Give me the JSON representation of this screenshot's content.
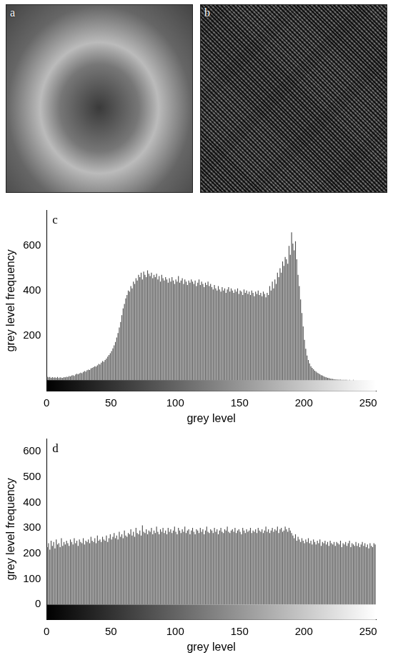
{
  "images": [
    {
      "label": "a"
    },
    {
      "label": "b"
    }
  ],
  "chart_data": [
    {
      "type": "histogram",
      "panel": "c",
      "x_label": "grey level",
      "y_label": "grey level frequency",
      "color": "#4d4d4d",
      "grid": false,
      "xlim": [
        0,
        256
      ],
      "xticks": [
        0,
        50,
        100,
        150,
        200,
        250
      ],
      "ylim": [
        -50,
        760
      ],
      "yticks": [
        200,
        400,
        600
      ],
      "bins": [
        0,
        1,
        2,
        3,
        4,
        5,
        6,
        7,
        8,
        9,
        10,
        11,
        12,
        13,
        14,
        15,
        16,
        17,
        18,
        19,
        20,
        21,
        22,
        23,
        24,
        25,
        26,
        27,
        28,
        29,
        30,
        31,
        32,
        33,
        34,
        35,
        36,
        37,
        38,
        39,
        40,
        41,
        42,
        43,
        44,
        45,
        46,
        47,
        48,
        49,
        50,
        51,
        52,
        53,
        54,
        55,
        56,
        57,
        58,
        59,
        60,
        61,
        62,
        63,
        64,
        65,
        66,
        67,
        68,
        69,
        70,
        71,
        72,
        73,
        74,
        75,
        76,
        77,
        78,
        79,
        80,
        81,
        82,
        83,
        84,
        85,
        86,
        87,
        88,
        89,
        90,
        91,
        92,
        93,
        94,
        95,
        96,
        97,
        98,
        99,
        100,
        101,
        102,
        103,
        104,
        105,
        106,
        107,
        108,
        109,
        110,
        111,
        112,
        113,
        114,
        115,
        116,
        117,
        118,
        119,
        120,
        121,
        122,
        123,
        124,
        125,
        126,
        127,
        128,
        129,
        130,
        131,
        132,
        133,
        134,
        135,
        136,
        137,
        138,
        139,
        140,
        141,
        142,
        143,
        144,
        145,
        146,
        147,
        148,
        149,
        150,
        151,
        152,
        153,
        154,
        155,
        156,
        157,
        158,
        159,
        160,
        161,
        162,
        163,
        164,
        165,
        166,
        167,
        168,
        169,
        170,
        171,
        172,
        173,
        174,
        175,
        176,
        177,
        178,
        179,
        180,
        181,
        182,
        183,
        184,
        185,
        186,
        187,
        188,
        189,
        190,
        191,
        192,
        193,
        194,
        195,
        196,
        197,
        198,
        199,
        200,
        201,
        202,
        203,
        204,
        205,
        206,
        207,
        208,
        209,
        210,
        211,
        212,
        213,
        214,
        215,
        216,
        217,
        218,
        219,
        220,
        221,
        222,
        223,
        224,
        225,
        226,
        227,
        228,
        229,
        230,
        231,
        232,
        233,
        234,
        235,
        236,
        237,
        238,
        239,
        240,
        241,
        242,
        243,
        244,
        245,
        246,
        247,
        248,
        249,
        250,
        251,
        252,
        253,
        254,
        255,
        256
      ],
      "values": [
        15,
        12,
        14,
        10,
        13,
        11,
        12,
        10,
        14,
        9,
        12,
        11,
        10,
        13,
        12,
        15,
        14,
        18,
        16,
        20,
        22,
        19,
        25,
        28,
        26,
        30,
        33,
        31,
        36,
        40,
        38,
        44,
        47,
        45,
        52,
        55,
        58,
        62,
        60,
        66,
        72,
        70,
        78,
        85,
        82,
        90,
        96,
        105,
        112,
        120,
        130,
        142,
        155,
        170,
        190,
        210,
        235,
        260,
        290,
        320,
        340,
        365,
        380,
        400,
        395,
        420,
        410,
        440,
        430,
        455,
        445,
        470,
        460,
        480,
        450,
        485,
        470,
        460,
        490,
        475,
        465,
        480,
        455,
        470,
        460,
        475,
        450,
        465,
        440,
        470,
        455,
        445,
        460,
        450,
        435,
        455,
        440,
        460,
        445,
        430,
        450,
        440,
        465,
        435,
        445,
        455,
        430,
        450,
        440,
        425,
        445,
        435,
        450,
        440,
        430,
        445,
        420,
        435,
        450,
        425,
        440,
        430,
        415,
        435,
        425,
        440,
        420,
        430,
        415,
        405,
        425,
        410,
        400,
        420,
        405,
        395,
        415,
        400,
        410,
        390,
        405,
        415,
        395,
        410,
        400,
        390,
        405,
        395,
        410,
        385,
        400,
        395,
        380,
        405,
        390,
        400,
        385,
        395,
        380,
        400,
        390,
        375,
        395,
        385,
        400,
        380,
        390,
        375,
        395,
        385,
        370,
        390,
        380,
        420,
        400,
        440,
        410,
        450,
        430,
        480,
        460,
        500,
        480,
        530,
        510,
        550,
        540,
        520,
        600,
        560,
        660,
        610,
        580,
        620,
        540,
        470,
        420,
        360,
        300,
        240,
        180,
        140,
        110,
        90,
        75,
        62,
        55,
        48,
        42,
        38,
        33,
        30,
        26,
        22,
        20,
        17,
        14,
        12,
        10,
        9,
        7,
        6,
        5,
        4,
        3,
        3,
        2,
        2,
        2,
        1,
        1,
        1,
        1,
        1,
        0,
        1,
        0,
        0,
        1,
        0,
        0,
        0,
        0,
        0,
        0,
        0,
        0,
        0,
        0,
        0,
        0,
        0,
        0,
        0,
        0,
        0
      ]
    },
    {
      "type": "histogram",
      "panel": "d",
      "x_label": "grey level",
      "y_label": "grey level frequency",
      "color": "#4d4d4d",
      "grid": false,
      "xlim": [
        0,
        256
      ],
      "xticks": [
        0,
        50,
        100,
        150,
        200,
        250
      ],
      "ylim": [
        -60,
        650
      ],
      "yticks": [
        0,
        100,
        200,
        300,
        400,
        500,
        600
      ],
      "bins": [
        0,
        1,
        2,
        3,
        4,
        5,
        6,
        7,
        8,
        9,
        10,
        11,
        12,
        13,
        14,
        15,
        16,
        17,
        18,
        19,
        20,
        21,
        22,
        23,
        24,
        25,
        26,
        27,
        28,
        29,
        30,
        31,
        32,
        33,
        34,
        35,
        36,
        37,
        38,
        39,
        40,
        41,
        42,
        43,
        44,
        45,
        46,
        47,
        48,
        49,
        50,
        51,
        52,
        53,
        54,
        55,
        56,
        57,
        58,
        59,
        60,
        61,
        62,
        63,
        64,
        65,
        66,
        67,
        68,
        69,
        70,
        71,
        72,
        73,
        74,
        75,
        76,
        77,
        78,
        79,
        80,
        81,
        82,
        83,
        84,
        85,
        86,
        87,
        88,
        89,
        90,
        91,
        92,
        93,
        94,
        95,
        96,
        97,
        98,
        99,
        100,
        101,
        102,
        103,
        104,
        105,
        106,
        107,
        108,
        109,
        110,
        111,
        112,
        113,
        114,
        115,
        116,
        117,
        118,
        119,
        120,
        121,
        122,
        123,
        124,
        125,
        126,
        127,
        128,
        129,
        130,
        131,
        132,
        133,
        134,
        135,
        136,
        137,
        138,
        139,
        140,
        141,
        142,
        143,
        144,
        145,
        146,
        147,
        148,
        149,
        150,
        151,
        152,
        153,
        154,
        155,
        156,
        157,
        158,
        159,
        160,
        161,
        162,
        163,
        164,
        165,
        166,
        167,
        168,
        169,
        170,
        171,
        172,
        173,
        174,
        175,
        176,
        177,
        178,
        179,
        180,
        181,
        182,
        183,
        184,
        185,
        186,
        187,
        188,
        189,
        190,
        191,
        192,
        193,
        194,
        195,
        196,
        197,
        198,
        199,
        200,
        201,
        202,
        203,
        204,
        205,
        206,
        207,
        208,
        209,
        210,
        211,
        212,
        213,
        214,
        215,
        216,
        217,
        218,
        219,
        220,
        221,
        222,
        223,
        224,
        225,
        226,
        227,
        228,
        229,
        230,
        231,
        232,
        233,
        234,
        235,
        236,
        237,
        238,
        239,
        240,
        241,
        242,
        243,
        244,
        245,
        246,
        247,
        248,
        249,
        250,
        251,
        252,
        253,
        254,
        255,
        256
      ],
      "values": [
        225,
        240,
        215,
        250,
        230,
        245,
        220,
        255,
        235,
        240,
        225,
        260,
        230,
        245,
        235,
        250,
        240,
        230,
        255,
        245,
        235,
        260,
        240,
        250,
        230,
        255,
        245,
        240,
        260,
        235,
        250,
        245,
        255,
        240,
        265,
        250,
        245,
        260,
        240,
        270,
        250,
        255,
        245,
        265,
        255,
        250,
        270,
        245,
        260,
        275,
        255,
        265,
        280,
        260,
        270,
        255,
        285,
        265,
        275,
        260,
        290,
        270,
        265,
        280,
        275,
        295,
        270,
        285,
        265,
        300,
        280,
        275,
        290,
        270,
        310,
        285,
        280,
        295,
        275,
        290,
        285,
        300,
        275,
        290,
        280,
        305,
        285,
        275,
        295,
        285,
        300,
        280,
        290,
        275,
        300,
        285,
        295,
        280,
        290,
        305,
        285,
        275,
        300,
        290,
        280,
        295,
        285,
        305,
        280,
        290,
        295,
        275,
        290,
        300,
        285,
        275,
        295,
        290,
        280,
        300,
        285,
        295,
        275,
        290,
        305,
        285,
        280,
        295,
        290,
        280,
        300,
        285,
        295,
        275,
        290,
        300,
        285,
        280,
        295,
        290,
        305,
        285,
        280,
        290,
        295,
        285,
        300,
        280,
        290,
        295,
        285,
        275,
        300,
        290,
        280,
        295,
        285,
        290,
        300,
        280,
        290,
        285,
        295,
        280,
        300,
        290,
        285,
        295,
        280,
        290,
        305,
        285,
        295,
        280,
        290,
        300,
        285,
        295,
        290,
        305,
        280,
        295,
        300,
        285,
        290,
        305,
        295,
        285,
        300,
        290,
        280,
        270,
        260,
        275,
        250,
        265,
        255,
        245,
        260,
        250,
        240,
        255,
        245,
        260,
        240,
        250,
        235,
        255,
        245,
        235,
        250,
        240,
        255,
        230,
        245,
        240,
        250,
        235,
        245,
        230,
        250,
        240,
        235,
        245,
        230,
        245,
        240,
        235,
        250,
        225,
        240,
        235,
        245,
        230,
        240,
        250,
        225,
        240,
        235,
        230,
        245,
        230,
        240,
        225,
        235,
        245,
        230,
        240,
        225,
        235,
        220,
        240,
        230,
        225,
        240,
        235
      ]
    }
  ]
}
